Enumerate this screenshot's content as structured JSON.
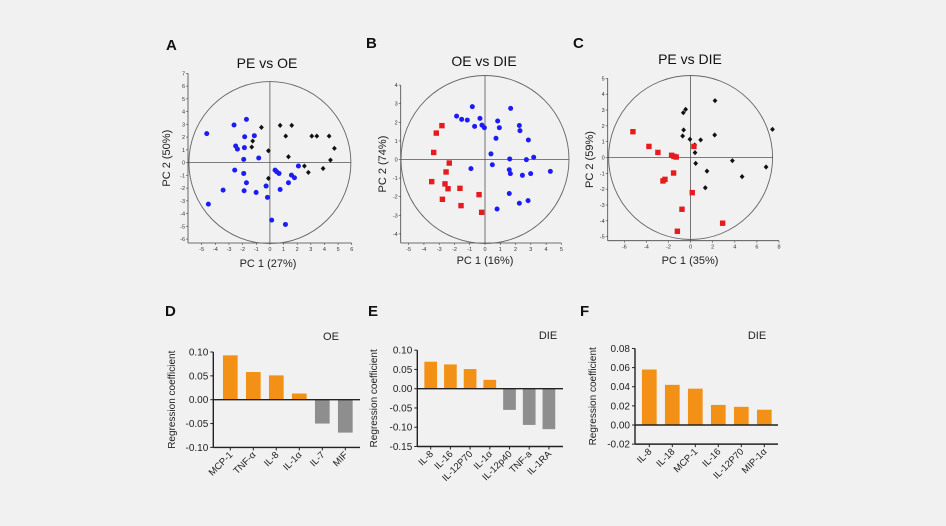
{
  "colors": {
    "blue": "#1c1cf5",
    "red": "#e51b1e",
    "black": "#111111",
    "orange": "#f39116",
    "gray": "#8e8e8e",
    "circle": "#666666"
  },
  "chart_data": [
    {
      "type": "scatter",
      "letter": "A",
      "title": "PE vs OE",
      "xlabel": "PC 1 (27%)",
      "ylabel": "PC 2 (50%)",
      "xlim": [
        -6,
        6
      ],
      "ylim": [
        -6,
        7
      ],
      "xticks": [
        -5,
        -4,
        -3,
        -2,
        -1,
        0,
        1,
        2,
        3,
        4,
        5,
        6
      ],
      "yticks": [
        -6,
        -5,
        -4,
        -3,
        -2,
        -1,
        0,
        1,
        2,
        3,
        4,
        5,
        6,
        7
      ],
      "series": [
        {
          "name": "OE",
          "color": "blue",
          "marker": "circle",
          "points": [
            [
              -4.63,
              2.27
            ],
            [
              -2.63,
              2.95
            ],
            [
              -1.72,
              3.39
            ],
            [
              -1.85,
              2.03
            ],
            [
              -1.14,
              2.11
            ],
            [
              -2.51,
              1.3
            ],
            [
              -2.38,
              1.06
            ],
            [
              -1.87,
              1.17
            ],
            [
              -1.92,
              0.25
            ],
            [
              -0.82,
              0.36
            ],
            [
              -2.58,
              -0.59
            ],
            [
              -1.92,
              -0.85
            ],
            [
              -1.72,
              -1.58
            ],
            [
              -1.89,
              -2.21
            ],
            [
              -3.43,
              -2.16
            ],
            [
              -1.01,
              -2.34
            ],
            [
              -0.28,
              -1.84
            ],
            [
              -0.18,
              -2.73
            ],
            [
              -4.51,
              -3.26
            ],
            [
              0.38,
              -0.59
            ],
            [
              0.5,
              -0.72
            ],
            [
              0.67,
              -0.85
            ],
            [
              1.58,
              -0.98
            ],
            [
              1.8,
              -1.19
            ],
            [
              1.36,
              -1.58
            ],
            [
              0.75,
              -2.11
            ],
            [
              2.09,
              -0.27
            ],
            [
              0.13,
              -4.51
            ],
            [
              1.14,
              -4.85
            ]
          ]
        },
        {
          "name": "PE",
          "color": "black",
          "marker": "diamond",
          "points": [
            [
              -0.62,
              2.76
            ],
            [
              -1.26,
              1.69
            ],
            [
              -1.33,
              1.22
            ],
            [
              -0.11,
              0.93
            ],
            [
              0.75,
              2.92
            ],
            [
              1.16,
              2.08
            ],
            [
              1.6,
              2.92
            ],
            [
              1.36,
              0.46
            ],
            [
              3.07,
              2.08
            ],
            [
              3.44,
              2.08
            ],
            [
              4.34,
              2.08
            ],
            [
              4.73,
              1.12
            ],
            [
              4.44,
              0.2
            ],
            [
              2.53,
              -0.27
            ],
            [
              2.82,
              -0.77
            ],
            [
              3.9,
              -0.46
            ],
            [
              -0.11,
              -1.24
            ]
          ]
        }
      ]
    },
    {
      "type": "scatter",
      "letter": "B",
      "title": "OE vs DIE",
      "xlabel": "PC 1 (16%)",
      "ylabel": "PC 2 (74%)",
      "xlim": [
        -5,
        5
      ],
      "ylim": [
        -4.5,
        4.5
      ],
      "xticks": [
        -5,
        -4,
        -3,
        -2,
        -1,
        0,
        1,
        2,
        3,
        4,
        5
      ],
      "yticks": [
        -4,
        -3,
        -2,
        -1,
        0,
        1,
        2,
        3,
        4
      ],
      "series": [
        {
          "name": "OE",
          "color": "blue",
          "marker": "circle",
          "points": [
            [
              -1.86,
              2.33
            ],
            [
              -1.53,
              2.16
            ],
            [
              -1.16,
              2.12
            ],
            [
              -0.83,
              2.84
            ],
            [
              -0.68,
              1.78
            ],
            [
              -0.33,
              2.21
            ],
            [
              -0.2,
              1.85
            ],
            [
              -0.04,
              1.71
            ],
            [
              0.83,
              2.07
            ],
            [
              0.94,
              1.71
            ],
            [
              0.72,
              1.14
            ],
            [
              1.68,
              2.75
            ],
            [
              2.25,
              1.83
            ],
            [
              2.29,
              1.55
            ],
            [
              2.84,
              1.05
            ],
            [
              0.39,
              0.3
            ],
            [
              0.48,
              -0.28
            ],
            [
              -0.92,
              -0.49
            ],
            [
              1.62,
              0.03
            ],
            [
              3.19,
              0.12
            ],
            [
              2.71,
              -0.01
            ],
            [
              1.59,
              -0.55
            ],
            [
              1.66,
              -0.76
            ],
            [
              2.45,
              -0.85
            ],
            [
              2.99,
              -0.76
            ],
            [
              4.28,
              -0.64
            ],
            [
              1.59,
              -1.83
            ],
            [
              2.25,
              -2.35
            ],
            [
              2.82,
              -2.21
            ],
            [
              0.79,
              -2.66
            ]
          ]
        },
        {
          "name": "DIE",
          "color": "red",
          "marker": "square",
          "points": [
            [
              -2.82,
              1.82
            ],
            [
              -3.19,
              1.42
            ],
            [
              -3.36,
              0.38
            ],
            [
              -2.34,
              -0.19
            ],
            [
              -2.55,
              -0.67
            ],
            [
              -3.49,
              -1.19
            ],
            [
              -2.62,
              -1.31
            ],
            [
              -2.42,
              -1.57
            ],
            [
              -1.64,
              -1.55
            ],
            [
              -0.39,
              -1.89
            ],
            [
              -2.79,
              -2.14
            ],
            [
              -1.57,
              -2.48
            ],
            [
              -0.22,
              -2.84
            ]
          ]
        }
      ]
    },
    {
      "type": "scatter",
      "letter": "C",
      "title": "PE vs DIE",
      "xlabel": "PC 1 (35%)",
      "ylabel": "PC 2 (59%)",
      "xlim": [
        -7.5,
        8
      ],
      "ylim": [
        -5.3,
        5.3
      ],
      "xticks": [
        -6,
        -4,
        -2,
        0,
        2,
        4,
        6,
        8
      ],
      "yticks": [
        -5,
        -4,
        -3,
        -2,
        -1,
        0,
        1,
        2,
        3,
        4,
        5
      ],
      "series": [
        {
          "name": "PE",
          "color": "black",
          "marker": "diamond",
          "points": [
            [
              -0.45,
              3.04
            ],
            [
              -0.66,
              2.83
            ],
            [
              -0.63,
              1.74
            ],
            [
              -0.72,
              1.36
            ],
            [
              -0.06,
              1.15
            ],
            [
              0.37,
              0.79
            ],
            [
              0.4,
              0.31
            ],
            [
              0.91,
              1.11
            ],
            [
              0.46,
              -0.37
            ],
            [
              2.21,
              3.59
            ],
            [
              2.18,
              1.42
            ],
            [
              1.48,
              -0.86
            ],
            [
              1.33,
              -1.91
            ],
            [
              3.78,
              -0.2
            ],
            [
              4.66,
              -1.21
            ],
            [
              6.83,
              -0.6
            ],
            [
              7.41,
              1.78
            ]
          ]
        },
        {
          "name": "DIE",
          "color": "red",
          "marker": "square",
          "points": [
            [
              -5.22,
              1.63
            ],
            [
              -3.77,
              0.7
            ],
            [
              -2.96,
              0.32
            ],
            [
              -1.72,
              0.14
            ],
            [
              -1.51,
              0.07
            ],
            [
              -1.3,
              0.03
            ],
            [
              0.3,
              0.7
            ],
            [
              -1.54,
              -0.98
            ],
            [
              -2.32,
              -1.38
            ],
            [
              -2.5,
              -1.48
            ],
            [
              0.15,
              -2.22
            ],
            [
              -0.78,
              -3.27
            ],
            [
              -1.2,
              -4.66
            ],
            [
              2.9,
              -4.15
            ]
          ]
        }
      ]
    },
    {
      "type": "bar",
      "letter": "D",
      "group": "OE",
      "ylabel": "Regression coefficient",
      "ylim": [
        -0.1,
        0.1
      ],
      "yticks": [
        "-0.10",
        "-0.05",
        "0.00",
        "0.05",
        "0.10"
      ],
      "categories": [
        "MCP-1",
        "TNF-α",
        "IL-8",
        "IL-1α",
        "IL-7",
        "MIF"
      ],
      "values": [
        0.093,
        0.058,
        0.051,
        0.013,
        -0.05,
        -0.069
      ]
    },
    {
      "type": "bar",
      "letter": "E",
      "group": "DIE",
      "ylabel": "Regression coefficient",
      "ylim": [
        -0.15,
        0.1
      ],
      "yticks": [
        "-0.15",
        "-0.10",
        "-0.05",
        "0.00",
        "0.05",
        "0.10"
      ],
      "categories": [
        "IL-8",
        "IL-16",
        "IL-12P70",
        "IL-1α",
        "IL-12p40",
        "TNF-a",
        "IL-1RA"
      ],
      "values": [
        0.07,
        0.063,
        0.051,
        0.023,
        -0.055,
        -0.094,
        -0.105
      ]
    },
    {
      "type": "bar",
      "letter": "F",
      "group": "DIE",
      "ylabel": "Regression coefficient",
      "ylim": [
        -0.02,
        0.08
      ],
      "yticks": [
        "-0.02",
        "0.00",
        "0.02",
        "0.04",
        "0.06",
        "0.08"
      ],
      "categories": [
        "IL-8",
        "IL-18",
        "MCP-1",
        "IL-16",
        "IL-12P70",
        "MIP-1α"
      ],
      "values": [
        0.058,
        0.042,
        0.038,
        0.021,
        0.019,
        0.016
      ]
    }
  ]
}
